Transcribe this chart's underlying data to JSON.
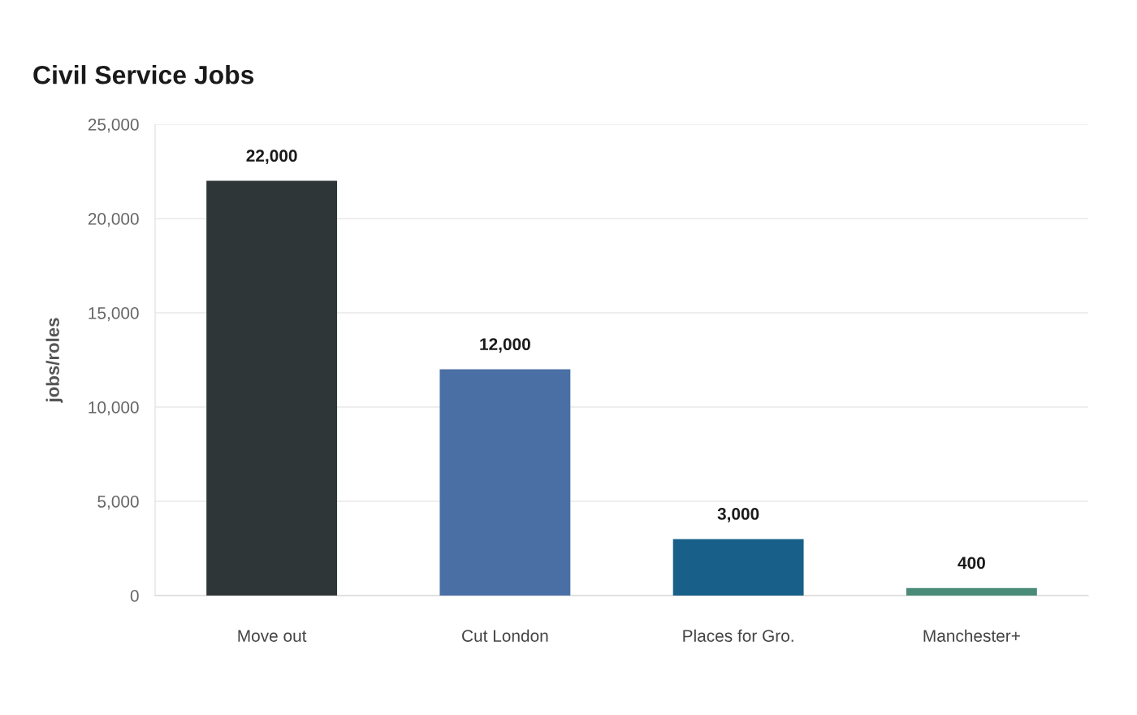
{
  "chart_data": {
    "type": "bar",
    "title": "Civil Service Jobs",
    "ylabel": "jobs/roles",
    "categories": [
      "Move out",
      "Cut London",
      "Places for Gro.",
      "Manchester+"
    ],
    "values": [
      22000,
      12000,
      3000,
      400
    ],
    "colors": [
      "#2e3638",
      "#4a6fa5",
      "#186089",
      "#4a8a78"
    ],
    "value_labels": [
      "22,000",
      "12,000",
      "3,000",
      "400"
    ],
    "ylim": [
      0,
      25000
    ],
    "yticks": [
      {
        "value": 0,
        "label": "0"
      },
      {
        "value": 5000,
        "label": "5,000"
      },
      {
        "value": 10000,
        "label": "10,000"
      },
      {
        "value": 15000,
        "label": "15,000"
      },
      {
        "value": 20000,
        "label": "20,000"
      },
      {
        "value": 25000,
        "label": "25,000"
      }
    ],
    "grid": "y",
    "legend": false
  }
}
